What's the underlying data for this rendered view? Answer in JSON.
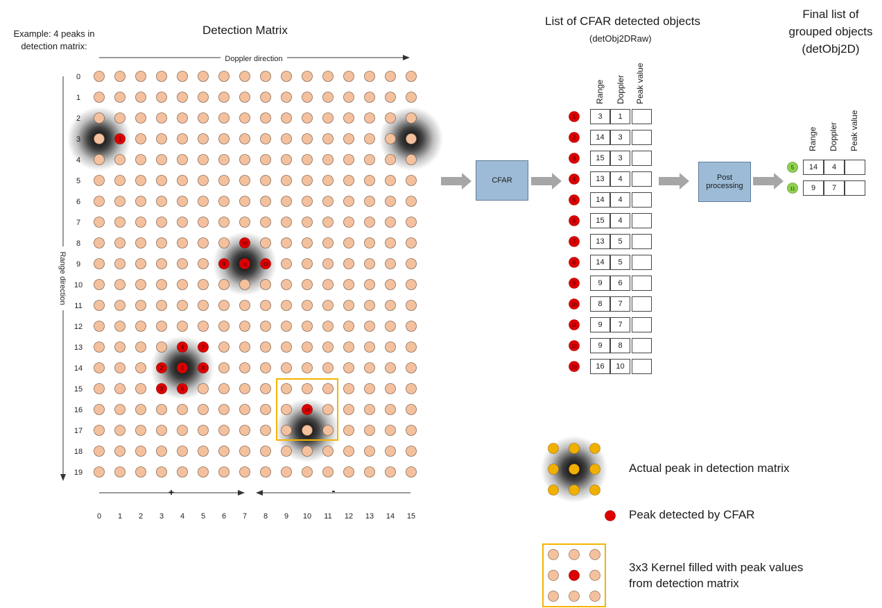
{
  "example_note": [
    "Example: 4 peaks in",
    "detection matrix:"
  ],
  "matrix_title": "Detection Matrix",
  "doppler_direction_label": "Doppler direction",
  "range_direction_label": "Range direction",
  "row_labels": [
    "0",
    "1",
    "2",
    "3",
    "4",
    "5",
    "6",
    "7",
    "8",
    "9",
    "10",
    "11",
    "12",
    "13",
    "14",
    "15",
    "16",
    "17",
    "18",
    "19"
  ],
  "col_labels": [
    "0",
    "1",
    "2",
    "3",
    "4",
    "5",
    "6",
    "7",
    "8",
    "9",
    "10",
    "11",
    "12",
    "13",
    "14",
    "15"
  ],
  "plus_label": "+",
  "minus_label": "-",
  "actual_peaks": [
    {
      "row": 3,
      "col": 0
    },
    {
      "row": 3,
      "col": 15
    },
    {
      "row": 9,
      "col": 7
    },
    {
      "row": 14,
      "col": 4
    },
    {
      "row": 17,
      "col": 10
    }
  ],
  "cfar_detections": [
    {
      "id": "1",
      "row": 3,
      "col": 1
    },
    {
      "id": "2",
      "row": 14,
      "col": 3
    },
    {
      "id": "3",
      "row": 15,
      "col": 3
    },
    {
      "id": "4",
      "row": 13,
      "col": 4
    },
    {
      "id": "5",
      "row": 14,
      "col": 4
    },
    {
      "id": "6",
      "row": 15,
      "col": 4
    },
    {
      "id": "7",
      "row": 13,
      "col": 5
    },
    {
      "id": "8",
      "row": 14,
      "col": 5
    },
    {
      "id": "9",
      "row": 9,
      "col": 6
    },
    {
      "id": "10",
      "row": 8,
      "col": 7
    },
    {
      "id": "11",
      "row": 9,
      "col": 7
    },
    {
      "id": "12",
      "row": 9,
      "col": 8
    },
    {
      "id": "13",
      "row": 16,
      "col": 10
    }
  ],
  "kernel_box": {
    "row_start": 15,
    "col_start": 9,
    "size": 3
  },
  "cfar_block_label": "CFAR",
  "post_block_label": [
    "Post",
    "processing"
  ],
  "cfar_list_title": "List of CFAR detected objects",
  "cfar_list_subtitle": "(detObj2DRaw)",
  "table_headers": [
    "Range",
    "Doppler",
    "Peak value"
  ],
  "cfar_list": [
    {
      "id": "1",
      "range": "3",
      "doppler": "1"
    },
    {
      "id": "2",
      "range": "14",
      "doppler": "3"
    },
    {
      "id": "3",
      "range": "15",
      "doppler": "3"
    },
    {
      "id": "4",
      "range": "13",
      "doppler": "4"
    },
    {
      "id": "5",
      "range": "14",
      "doppler": "4"
    },
    {
      "id": "6",
      "range": "15",
      "doppler": "4"
    },
    {
      "id": "7",
      "range": "13",
      "doppler": "5"
    },
    {
      "id": "8",
      "range": "14",
      "doppler": "5"
    },
    {
      "id": "9",
      "range": "9",
      "doppler": "6"
    },
    {
      "id": "10",
      "range": "8",
      "doppler": "7"
    },
    {
      "id": "11",
      "range": "9",
      "doppler": "7"
    },
    {
      "id": "12",
      "range": "9",
      "doppler": "8"
    },
    {
      "id": "13",
      "range": "16",
      "doppler": "10"
    }
  ],
  "final_list_title": [
    "Final list of",
    "grouped objects",
    "(detObj2D)"
  ],
  "final_list": [
    {
      "id": "5",
      "range": "14",
      "doppler": "4"
    },
    {
      "id": "11",
      "range": "9",
      "doppler": "7"
    }
  ],
  "legend": {
    "actual_peak": "Actual peak in detection matrix",
    "cfar_peak": "Peak detected by CFAR",
    "kernel": [
      "3x3 Kernel filled with peak values",
      "from detection matrix"
    ]
  },
  "colors": {
    "cell": "#f4c19e",
    "cell_border": "#8a6a55",
    "cfar_red": "#dd0000",
    "final_green": "#8fd14f",
    "kernel_yellow": "#f4b400",
    "legend_dot": "#f0b000",
    "block_blue": "#9dbbd6",
    "arrow_gray": "#a6a6a6"
  }
}
